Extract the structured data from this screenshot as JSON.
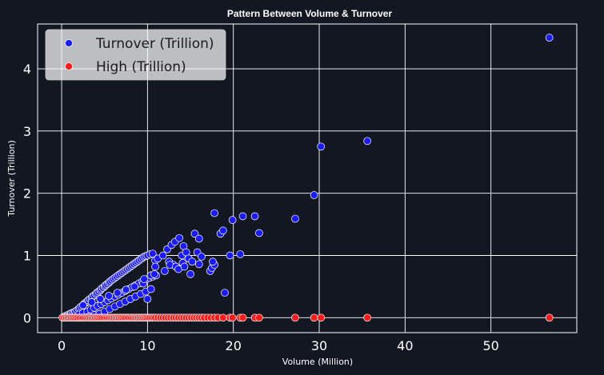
{
  "chart_data": {
    "type": "scatter",
    "title": "Pattern Between Volume & Turnover",
    "xlabel": "Volume (Million)",
    "ylabel": "Turnover (Trillion)",
    "xlim": [
      -2.8,
      60
    ],
    "ylim": [
      -0.24,
      4.72
    ],
    "x_ticks": [
      0,
      10,
      20,
      30,
      40,
      50
    ],
    "y_ticks": [
      0,
      1,
      2,
      3,
      4
    ],
    "x_tick_labels": [
      "0",
      "10",
      "20",
      "30",
      "40",
      "50"
    ],
    "y_tick_labels": [
      "0",
      "1",
      "2",
      "3",
      "4"
    ],
    "grid": true,
    "legend_position": "top-left",
    "background": "#131722",
    "series": [
      {
        "name": "Turnover (Trillion)",
        "color": "#1a1aff",
        "x": [
          0.2,
          0.4,
          0.5,
          0.7,
          0.8,
          1.0,
          1.1,
          1.3,
          1.5,
          1.6,
          1.8,
          2.0,
          2.1,
          2.3,
          2.5,
          2.6,
          2.8,
          3.0,
          3.1,
          3.3,
          3.5,
          3.6,
          3.8,
          4.0,
          4.1,
          4.3,
          4.5,
          4.6,
          4.8,
          5.0,
          5.1,
          5.3,
          5.5,
          5.6,
          5.8,
          6.0,
          6.2,
          6.4,
          6.6,
          6.8,
          7.0,
          7.2,
          7.4,
          7.6,
          7.8,
          8.0,
          8.2,
          8.4,
          8.6,
          8.8,
          9.0,
          9.2,
          9.4,
          9.6,
          9.8,
          10.0,
          10.3,
          10.6,
          10.9,
          2.0,
          2.5,
          3.0,
          3.4,
          3.8,
          4.2,
          4.6,
          5.0,
          5.4,
          5.8,
          6.2,
          6.6,
          7.0,
          7.4,
          7.8,
          8.2,
          8.6,
          9.0,
          9.4,
          9.8,
          10.2,
          10.6,
          11.0,
          3.2,
          3.8,
          4.4,
          5.0,
          5.6,
          6.2,
          6.8,
          7.4,
          8.0,
          8.6,
          9.2,
          9.8,
          10.4,
          4.5,
          5.5,
          6.5,
          7.5,
          8.5,
          9.5,
          2.5,
          3.5,
          4.5,
          5.5,
          6.5,
          7.5,
          10.0,
          10.4,
          10.9,
          11.2,
          11.8,
          12.3,
          12.8,
          13.2,
          13.7,
          14.2,
          12.5,
          13.0,
          13.5,
          14.0,
          14.5,
          15.0,
          15.5,
          16.0,
          12.0,
          12.6,
          13.3,
          14.1,
          14.8,
          15.2,
          15.8,
          16.3,
          17.3,
          17.5,
          17.8,
          17.8,
          18.5,
          18.8,
          19.0,
          19.6,
          19.9,
          20.8,
          21.1,
          22.5,
          23.0,
          27.2,
          29.4,
          30.2,
          35.6,
          56.8,
          13.6,
          14.3,
          16.0,
          17.6,
          9.6,
          10.8
        ],
        "y": [
          0.01,
          0.02,
          0.03,
          0.04,
          0.05,
          0.06,
          0.07,
          0.08,
          0.09,
          0.1,
          0.12,
          0.14,
          0.16,
          0.18,
          0.2,
          0.22,
          0.24,
          0.26,
          0.28,
          0.3,
          0.32,
          0.34,
          0.36,
          0.38,
          0.4,
          0.42,
          0.44,
          0.46,
          0.48,
          0.5,
          0.52,
          0.54,
          0.56,
          0.58,
          0.6,
          0.62,
          0.64,
          0.66,
          0.68,
          0.7,
          0.72,
          0.74,
          0.76,
          0.78,
          0.8,
          0.82,
          0.84,
          0.86,
          0.88,
          0.9,
          0.92,
          0.94,
          0.96,
          0.98,
          0.99,
          1.0,
          1.02,
          1.03,
          0.92,
          0.05,
          0.08,
          0.1,
          0.13,
          0.16,
          0.19,
          0.22,
          0.25,
          0.28,
          0.31,
          0.34,
          0.37,
          0.4,
          0.43,
          0.46,
          0.49,
          0.52,
          0.55,
          0.58,
          0.61,
          0.64,
          0.66,
          0.68,
          0.02,
          0.04,
          0.06,
          0.1,
          0.14,
          0.18,
          0.22,
          0.26,
          0.3,
          0.34,
          0.38,
          0.42,
          0.46,
          0.3,
          0.35,
          0.4,
          0.45,
          0.5,
          0.55,
          0.2,
          0.25,
          0.3,
          0.35,
          0.4,
          0.45,
          0.3,
          0.68,
          0.82,
          0.95,
          1.0,
          1.1,
          1.17,
          1.22,
          1.28,
          1.15,
          0.9,
          0.85,
          0.8,
          1.0,
          1.05,
          0.7,
          1.35,
          1.27,
          0.75,
          0.85,
          0.82,
          0.88,
          0.95,
          0.9,
          1.05,
          0.98,
          0.75,
          0.8,
          0.85,
          1.68,
          1.35,
          1.4,
          0.4,
          1.0,
          1.57,
          1.02,
          1.63,
          1.63,
          1.36,
          1.59,
          1.97,
          2.75,
          2.84,
          4.5,
          0.78,
          0.82,
          0.86,
          0.9,
          0.62,
          0.7
        ]
      },
      {
        "name": "High (Trillion)",
        "color": "#ff1a1a",
        "x": [
          0.1,
          0.3,
          0.5,
          0.7,
          0.9,
          1.1,
          1.3,
          1.5,
          1.7,
          1.9,
          2.1,
          2.3,
          2.5,
          2.7,
          2.9,
          3.1,
          3.3,
          3.5,
          3.7,
          3.9,
          4.1,
          4.3,
          4.5,
          4.7,
          4.9,
          5.1,
          5.3,
          5.5,
          5.7,
          5.9,
          6.1,
          6.3,
          6.5,
          6.7,
          6.9,
          7.1,
          7.3,
          7.5,
          7.7,
          7.9,
          8.1,
          8.3,
          8.5,
          8.7,
          8.9,
          9.1,
          9.3,
          9.5,
          9.7,
          9.9,
          10.1,
          10.3,
          10.5,
          10.7,
          10.9,
          11.2,
          11.5,
          11.8,
          12.1,
          12.4,
          12.7,
          13.0,
          13.3,
          13.6,
          13.9,
          14.2,
          14.5,
          14.8,
          15.1,
          15.4,
          15.7,
          16.0,
          16.3,
          16.6,
          17.0,
          17.4,
          17.8,
          18.2,
          18.8,
          19.6,
          19.9,
          20.8,
          21.1,
          22.5,
          23.0,
          27.2,
          29.4,
          30.2,
          35.6,
          56.8
        ],
        "y": [
          0,
          0,
          0,
          0,
          0,
          0,
          0,
          0,
          0,
          0,
          0,
          0,
          0,
          0,
          0,
          0,
          0,
          0,
          0,
          0,
          0,
          0,
          0,
          0,
          0,
          0,
          0,
          0,
          0,
          0,
          0,
          0,
          0,
          0,
          0,
          0,
          0,
          0,
          0,
          0,
          0,
          0,
          0,
          0,
          0,
          0,
          0,
          0,
          0,
          0,
          0,
          0,
          0,
          0,
          0,
          0,
          0,
          0,
          0,
          0,
          0,
          0,
          0,
          0,
          0,
          0,
          0,
          0,
          0,
          0,
          0,
          0,
          0,
          0,
          0,
          0,
          0,
          0,
          0,
          0,
          0,
          0,
          0,
          0,
          0,
          0,
          0,
          0,
          0,
          0
        ]
      }
    ]
  }
}
